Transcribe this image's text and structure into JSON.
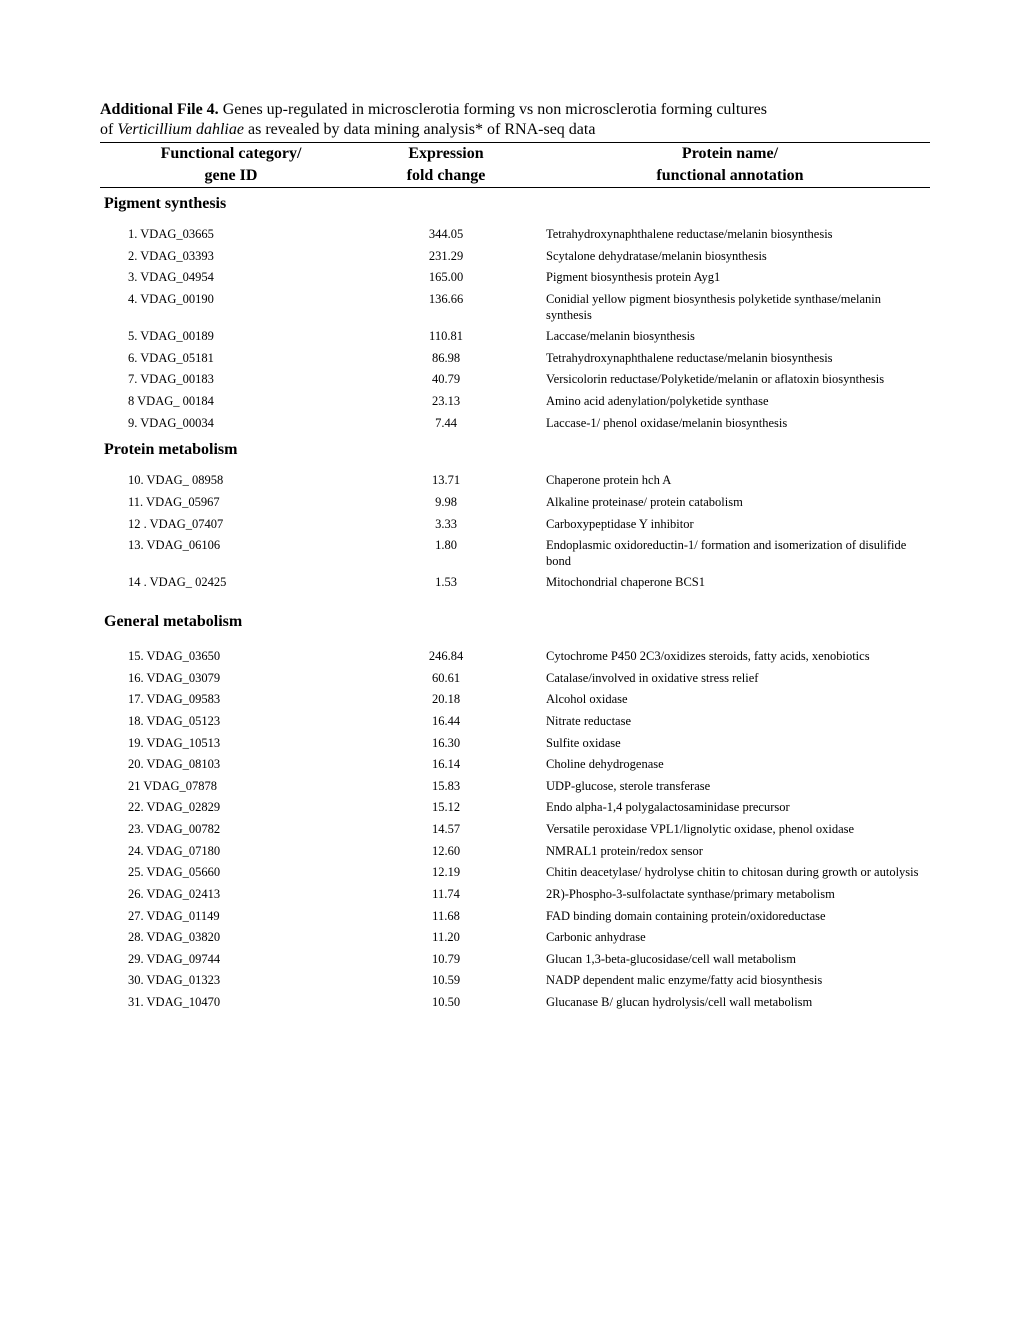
{
  "title": {
    "lead": "Additional File 4.",
    "rest_line1": " Genes up-regulated in microsclerotia forming vs non microsclerotia forming cultures",
    "line2_pre": "of ",
    "line2_italic": "Verticillium dahliae",
    "line2_post": " as revealed by data mining analysis* of RNA-seq data"
  },
  "headers": {
    "col1a": "Functional category/",
    "col1b": "gene ID",
    "col2a": "Expression",
    "col2b": "fold change",
    "col3a": "Protein name/",
    "col3b": "functional annotation"
  },
  "sections": [
    {
      "name": "Pigment synthesis",
      "extra_space": false,
      "rows": [
        {
          "n": "1.",
          "g": "VDAG_03665",
          "f": "344.05",
          "a": "Tetrahydroxynaphthalene reductase/melanin biosynthesis"
        },
        {
          "n": "2.",
          "g": "VDAG_03393",
          "f": "231.29",
          "a": "Scytalone dehydratase/melanin biosynthesis"
        },
        {
          "n": "3.",
          "g": "VDAG_04954",
          "f": "165.00",
          "a": "Pigment biosynthesis protein Ayg1"
        },
        {
          "n": "4.",
          "g": "VDAG_00190",
          "f": "136.66",
          "a": "Conidial yellow pigment biosynthesis polyketide synthase/melanin synthesis"
        },
        {
          "n": "5.",
          "g": "VDAG_00189",
          "f": "110.81",
          "a": "Laccase/melanin biosynthesis"
        },
        {
          "n": "6.",
          "g": "VDAG_05181",
          "f": "86.98",
          "a": "Tetrahydroxynaphthalene reductase/melanin biosynthesis"
        },
        {
          "n": "7.",
          "g": "VDAG_00183",
          "f": "40.79",
          "a": "Versicolorin reductase/Polyketide/melanin or aflatoxin biosynthesis"
        },
        {
          "n": "8",
          "g": "VDAG_ 00184",
          "f": "23.13",
          "a": "Amino acid adenylation/polyketide synthase"
        },
        {
          "n": "9.",
          "g": "VDAG_00034",
          "f": "7.44",
          "a": "Laccase-1/ phenol oxidase/melanin biosynthesis"
        }
      ]
    },
    {
      "name": "Protein metabolism",
      "extra_space": false,
      "rows": [
        {
          "n": "10.",
          "g": "VDAG_ 08958",
          "f": "13.71",
          "a": "Chaperone protein hch A"
        },
        {
          "n": "11.",
          "g": "VDAG_05967",
          "f": "9.98",
          "a": "Alkaline proteinase/ protein catabolism"
        },
        {
          "n": "12 .",
          "g": "VDAG_07407",
          "f": "3.33",
          "a": "Carboxypeptidase Y inhibitor"
        },
        {
          "n": "13.",
          "g": "VDAG_06106",
          "f": "1.80",
          "a": "Endoplasmic oxidoreductin-1/ formation and isomerization of disulifide  bond"
        },
        {
          "n": "14 .",
          "g": "VDAG_ 02425",
          "f": "1.53",
          "a": "Mitochondrial chaperone BCS1"
        }
      ]
    },
    {
      "name": "General metabolism",
      "extra_space": true,
      "rows": [
        {
          "n": "15.",
          "g": "VDAG_03650",
          "f": "246.84",
          "a": "Cytochrome P450 2C3/oxidizes steroids, fatty acids, xenobiotics"
        },
        {
          "n": "16.",
          "g": "VDAG_03079",
          "f": "60.61",
          "a": "Catalase/involved in oxidative stress relief"
        },
        {
          "n": "17.",
          "g": "VDAG_09583",
          "f": "20.18",
          "a": "Alcohol oxidase"
        },
        {
          "n": "18.",
          "g": "VDAG_05123",
          "f": "16.44",
          "a": "Nitrate reductase"
        },
        {
          "n": "19.",
          "g": "VDAG_10513",
          "f": "16.30",
          "a": "Sulfite oxidase"
        },
        {
          "n": "20.",
          "g": "VDAG_08103",
          "f": "16.14",
          "a": "Choline dehydrogenase"
        },
        {
          "n": "21",
          "g": "VDAG_07878",
          "f": "15.83",
          "a": "UDP-glucose, sterole  transferase"
        },
        {
          "n": "22.",
          "g": " VDAG_02829",
          "f": "15.12",
          "a": "Endo alpha-1,4 polygalactosaminidase precursor"
        },
        {
          "n": "23.",
          "g": " VDAG_00782",
          "f": "14.57",
          "a": "Versatile peroxidase VPL1/lignolytic oxidase, phenol oxidase"
        },
        {
          "n": "24.",
          "g": " VDAG_07180",
          "f": "12.60",
          "a": "NMRAL1 protein/redox sensor"
        },
        {
          "n": "25.",
          "g": " VDAG_05660",
          "f": "12.19",
          "a": "Chitin deacetylase/ hydrolyse chitin to chitosan  during growth or  autolysis"
        },
        {
          "n": "26.",
          "g": " VDAG_02413",
          "f": "11.74",
          "a": "2R)-Phospho-3-sulfolactate synthase/primary metabolism"
        },
        {
          "n": "27.",
          "g": " VDAG_01149",
          "f": "11.68",
          "a": "FAD binding domain containing protein/oxidoreductase"
        },
        {
          "n": "28.",
          "g": " VDAG_03820",
          "f": "11.20",
          "a": "Carbonic anhydrase"
        },
        {
          "n": "29.",
          "g": " VDAG_09744",
          "f": "10.79",
          "a": "Glucan 1,3-beta-glucosidase/cell wall metabolism"
        },
        {
          "n": "30.",
          "g": "VDAG_01323",
          "f": "10.59",
          "a": "NADP dependent malic enzyme/fatty acid biosynthesis"
        },
        {
          "n": "31.",
          "g": "VDAG_10470",
          "f": "10.50",
          "a": "Glucanase B/ glucan hydrolysis/cell wall metabolism"
        }
      ]
    }
  ]
}
